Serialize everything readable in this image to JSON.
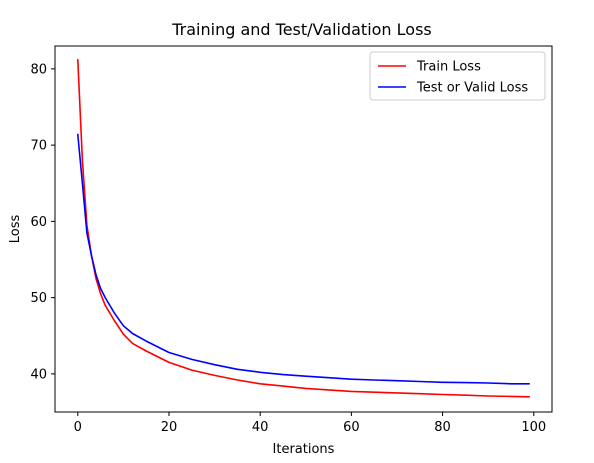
{
  "chart_data": {
    "type": "line",
    "title": "Training and Test/Validation Loss",
    "xlabel": "Iterations",
    "ylabel": "Loss",
    "xlim": [
      -5,
      104
    ],
    "ylim": [
      35,
      83
    ],
    "xticks": [
      0,
      20,
      40,
      60,
      80,
      100
    ],
    "yticks": [
      40,
      50,
      60,
      70,
      80
    ],
    "grid": false,
    "legend_position": "top-right",
    "series": [
      {
        "name": "Train Loss",
        "color": "#ff0000",
        "x": [
          0,
          1,
          2,
          3,
          4,
          5,
          6,
          8,
          10,
          12,
          15,
          20,
          25,
          30,
          35,
          40,
          45,
          50,
          55,
          60,
          65,
          70,
          75,
          80,
          85,
          90,
          95,
          99
        ],
        "y": [
          81.2,
          68.0,
          59.5,
          55.5,
          52.5,
          50.5,
          49.0,
          47.0,
          45.2,
          44.0,
          43.0,
          41.5,
          40.5,
          39.8,
          39.2,
          38.7,
          38.4,
          38.1,
          37.9,
          37.7,
          37.6,
          37.5,
          37.4,
          37.3,
          37.2,
          37.1,
          37.05,
          37.0
        ]
      },
      {
        "name": "Test or Valid Loss",
        "color": "#0000ff",
        "x": [
          0,
          1,
          2,
          3,
          4,
          5,
          6,
          8,
          10,
          12,
          15,
          20,
          25,
          30,
          35,
          40,
          45,
          50,
          55,
          60,
          65,
          70,
          75,
          80,
          85,
          90,
          95,
          99
        ],
        "y": [
          71.4,
          65.0,
          58.5,
          55.5,
          53.0,
          51.2,
          50.0,
          48.0,
          46.3,
          45.3,
          44.3,
          42.8,
          41.9,
          41.2,
          40.6,
          40.2,
          39.9,
          39.7,
          39.5,
          39.3,
          39.2,
          39.1,
          39.0,
          38.9,
          38.85,
          38.8,
          38.7,
          38.7
        ]
      }
    ]
  }
}
